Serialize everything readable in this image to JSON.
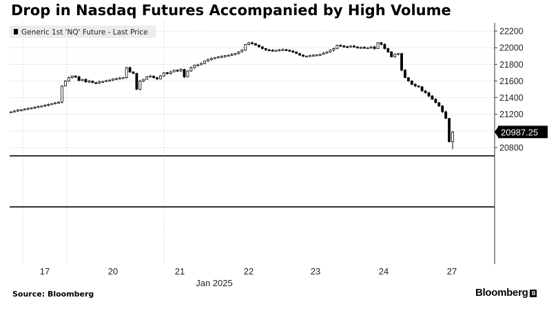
{
  "title": "Drop in Nasdaq Futures Accompanied by High Volume",
  "source": "Source: Bloomberg",
  "brand": "Bloomberg",
  "colors": {
    "candle": "#000000",
    "grid": "#c8c8c8",
    "axis": "#333333",
    "label_bg": "#000000",
    "label_text": "#ffffff"
  },
  "chart_data": {
    "type": "candlestick",
    "legend": {
      "label": "Generic 1st 'NQ' Future - Last Price",
      "placement": "top-left"
    },
    "last_price_label": "20987.25",
    "ylim": [
      20700,
      22300
    ],
    "y_ticks": [
      20800,
      21000,
      21200,
      21400,
      21600,
      21800,
      22000,
      22200
    ],
    "x_ticks": [
      "17",
      "20",
      "21",
      "22",
      "23",
      "24",
      "27"
    ],
    "x_group_label": "Jan 2025",
    "grid": true,
    "session_breaks": [
      3.55,
      16.35,
      44.95
    ],
    "close": [
      21230,
      21240,
      21250,
      21255,
      21262,
      21270,
      21278,
      21285,
      21292,
      21300,
      21310,
      21318,
      21328,
      21337,
      21345,
      21540,
      21600,
      21640,
      21660,
      21650,
      21605,
      21620,
      21590,
      21600,
      21580,
      21575,
      21590,
      21595,
      21605,
      21610,
      21625,
      21630,
      21635,
      21640,
      21760,
      21710,
      21690,
      21500,
      21600,
      21620,
      21650,
      21660,
      21640,
      21625,
      21660,
      21700,
      21690,
      21710,
      21730,
      21720,
      21740,
      21650,
      21720,
      21760,
      21790,
      21795,
      21810,
      21840,
      21860,
      21870,
      21880,
      21890,
      21895,
      21905,
      21910,
      21920,
      21930,
      21950,
      21970,
      22040,
      22060,
      22050,
      22030,
      22010,
      21990,
      21975,
      21970,
      21965,
      21970,
      21975,
      21978,
      21970,
      21960,
      21950,
      21930,
      21910,
      21900,
      21900,
      21905,
      21910,
      21915,
      21920,
      21935,
      21950,
      21970,
      21990,
      22030,
      22020,
      22015,
      22010,
      22020,
      22010,
      22000,
      22005,
      21995,
      22000,
      22010,
      21990,
      22060,
      22040,
      21990,
      21950,
      21890,
      21920,
      21930,
      21730,
      21640,
      21600,
      21560,
      21540,
      21530,
      21480,
      21460,
      21420,
      21380,
      21340,
      21300,
      21230,
      21150,
      20870,
      20987.25
    ],
    "volume": []
  }
}
